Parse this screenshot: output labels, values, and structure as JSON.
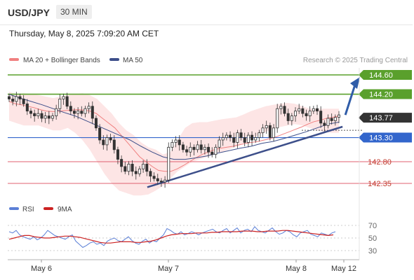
{
  "header": {
    "pair": "USD/JPY",
    "timeframe": "30 MIN",
    "datetime": "Thursday, May 8, 2025 7:09:20 AM CET"
  },
  "legend": {
    "ma20": "MA 20 + Bollinger Bands",
    "ma50": "MA 50",
    "credit": "Research © 2025 Trading Central",
    "rsi": "RSI",
    "rsi_ma": "9MA"
  },
  "colors": {
    "target": "#5aa02c",
    "current": "#333333",
    "support": "#3366cc",
    "pivot_line": "#e06070",
    "band": "#fde1e1",
    "ma20": "#f08080",
    "ma50": "#3d4f8a",
    "trend": "#3d4f8a",
    "candle": "#333333"
  },
  "chart_data": [
    {
      "type": "candlestick",
      "title": "USD/JPY 30 MIN",
      "x_labels": [
        "May 6",
        "May 7",
        "May 8",
        "May 12"
      ],
      "levels": [
        {
          "value": 144.6,
          "label": "144.60",
          "kind": "target"
        },
        {
          "value": 144.2,
          "label": "144.20",
          "kind": "target"
        },
        {
          "value": 143.77,
          "label": "143.77",
          "kind": "current"
        },
        {
          "value": 143.3,
          "label": "143.30",
          "kind": "support"
        },
        {
          "value": 142.8,
          "label": "142.80",
          "kind": "pivot"
        },
        {
          "value": 142.35,
          "label": "142.35",
          "kind": "pivot"
        }
      ],
      "close": [
        144.1,
        144.05,
        144.15,
        144.1,
        144.0,
        143.85,
        143.8,
        143.75,
        143.8,
        143.7,
        143.75,
        143.7,
        143.75,
        143.9,
        144.1,
        144.15,
        143.95,
        143.85,
        143.8,
        143.85,
        143.8,
        143.9,
        143.95,
        143.7,
        143.5,
        143.25,
        143.15,
        143.3,
        143.25,
        143.05,
        142.85,
        142.7,
        142.6,
        142.75,
        142.6,
        142.55,
        142.65,
        142.75,
        142.6,
        142.5,
        142.45,
        142.4,
        142.38,
        142.42,
        143.1,
        143.2,
        143.25,
        143.15,
        143.05,
        143.0,
        143.1,
        143.05,
        143.15,
        143.05,
        143.1,
        143.0,
        142.95,
        143.1,
        143.25,
        143.3,
        143.35,
        143.3,
        143.2,
        143.4,
        143.3,
        143.2,
        143.35,
        143.25,
        143.3,
        143.4,
        143.5,
        143.55,
        143.3,
        143.5,
        143.9,
        143.95,
        143.8,
        143.65,
        143.75,
        143.85,
        143.9,
        143.8,
        143.75,
        143.85,
        143.9,
        143.85,
        143.6,
        143.55,
        143.7,
        143.65,
        143.72,
        143.77
      ],
      "ma20": [
        144.05,
        144.0,
        143.98,
        143.95,
        143.92,
        143.88,
        143.85,
        143.84,
        143.85,
        143.86,
        143.87,
        143.88,
        143.87,
        143.85,
        143.8,
        143.7,
        143.6,
        143.5,
        143.35,
        143.2,
        143.05,
        142.9,
        142.8,
        142.7,
        142.62,
        142.6,
        142.6,
        142.65,
        142.72,
        142.8,
        142.88,
        142.95,
        143.0,
        143.05,
        143.08,
        143.1,
        143.12,
        143.15,
        143.18,
        143.2,
        143.22,
        143.25,
        143.28,
        143.32,
        143.37,
        143.42,
        143.47,
        143.52,
        143.58,
        143.63,
        143.66,
        143.7,
        143.72,
        143.75
      ],
      "ma50": [
        144.2,
        144.12,
        144.05,
        143.98,
        143.9,
        143.82,
        143.75,
        143.65,
        143.55,
        143.45,
        143.35,
        143.25,
        143.12,
        143.0,
        142.9,
        142.85,
        142.85,
        142.88,
        142.92,
        142.98,
        143.03,
        143.08,
        143.12,
        143.18,
        143.22,
        143.28,
        143.35,
        143.42,
        143.5,
        143.58,
        143.62
      ],
      "band_upper": [
        144.25,
        144.2,
        144.22,
        144.2,
        144.18,
        144.15,
        144.12,
        144.15,
        144.18,
        144.2,
        144.22,
        144.18,
        144.1,
        143.95,
        143.8,
        143.6,
        143.45,
        143.35,
        143.2,
        143.1,
        143.05,
        142.95,
        143.0,
        143.25,
        143.5,
        143.6,
        143.62,
        143.62,
        143.65,
        143.68,
        143.7,
        143.72,
        143.78,
        143.85,
        143.9,
        143.95,
        143.98,
        144.0,
        144.02,
        144.0,
        143.95,
        143.9,
        143.9,
        143.9,
        143.9,
        143.9
      ],
      "band_lower": [
        143.65,
        143.6,
        143.55,
        143.55,
        143.55,
        143.5,
        143.45,
        143.45,
        143.5,
        143.4,
        143.25,
        143.05,
        142.8,
        142.55,
        142.35,
        142.2,
        142.15,
        142.1,
        142.1,
        142.12,
        142.2,
        142.3,
        142.45,
        142.6,
        142.7,
        142.8,
        142.85,
        142.9,
        142.95,
        143.0,
        143.05,
        143.12,
        143.2,
        143.28,
        143.35,
        143.42,
        143.48,
        143.52,
        143.55,
        143.58,
        143.55,
        143.5,
        143.45,
        143.42,
        143.4,
        143.4
      ],
      "trendlines": [
        {
          "from": [
            42,
            142.3
          ],
          "to": [
            92,
            143.7
          ]
        }
      ],
      "projection": {
        "from": [
          92,
          143.77
        ],
        "to": [
          101,
          144.6
        ]
      }
    },
    {
      "type": "line",
      "title": "RSI",
      "yticks": [
        70,
        50,
        30
      ],
      "series": [
        {
          "name": "RSI",
          "values": [
            60,
            58,
            62,
            55,
            52,
            50,
            48,
            52,
            47,
            50,
            55,
            62,
            58,
            54,
            52,
            50,
            48,
            52,
            55,
            45,
            40,
            35,
            38,
            42,
            44,
            40,
            42,
            38,
            45,
            48,
            50,
            46,
            44,
            48,
            52,
            46,
            42,
            40,
            45,
            48,
            42,
            46,
            44,
            50,
            55,
            65,
            62,
            58,
            56,
            60,
            55,
            57,
            60,
            58,
            55,
            58,
            60,
            62,
            64,
            60,
            58,
            62,
            65,
            58,
            62,
            66,
            58,
            62,
            64,
            60,
            68,
            62,
            60,
            58,
            62,
            66,
            60,
            56,
            58,
            62,
            60,
            55,
            52,
            58,
            60,
            62,
            56,
            54,
            52,
            58,
            56,
            54,
            58,
            60
          ]
        },
        {
          "name": "9MA",
          "values": [
            48,
            50,
            52,
            54,
            54,
            52,
            51,
            50,
            50,
            51,
            52,
            53,
            53,
            52,
            51,
            49,
            47,
            45,
            43,
            42,
            42,
            43,
            44,
            44,
            44,
            43,
            43,
            44,
            45,
            47,
            50,
            53,
            55,
            56,
            57,
            57,
            57,
            58,
            58,
            58,
            59,
            59,
            60,
            60,
            60,
            60,
            61,
            61,
            61,
            60,
            60,
            61,
            61,
            61,
            62,
            62,
            61,
            60,
            59,
            58,
            57,
            56,
            55,
            54,
            55
          ]
        }
      ]
    }
  ]
}
